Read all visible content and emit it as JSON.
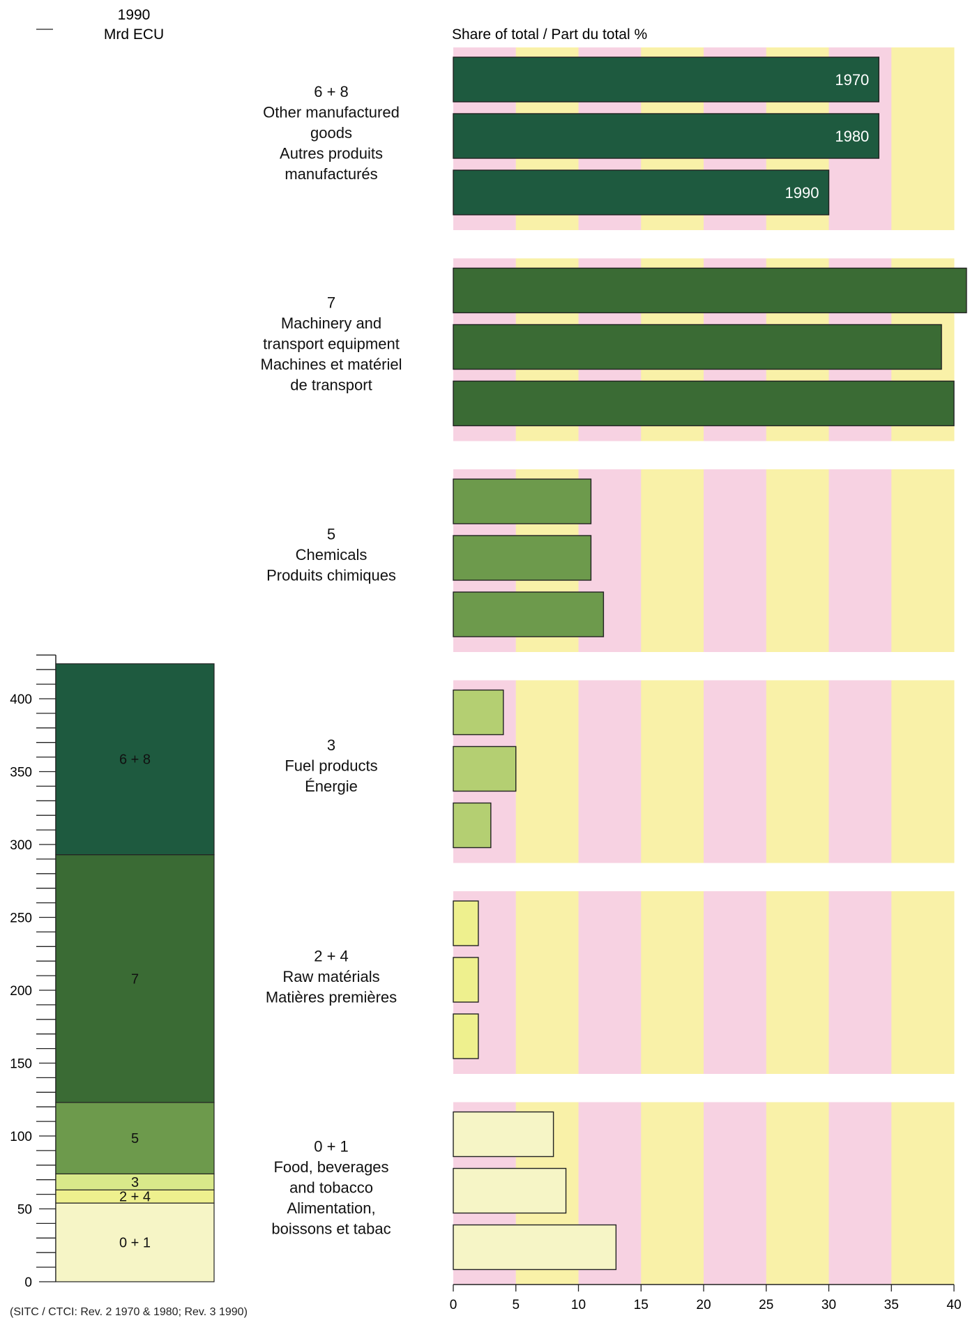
{
  "chart_data": [
    {
      "type": "bar",
      "subtype": "stacked-column",
      "title": "1990",
      "ylabel": "Mrd ECU",
      "ylim": [
        0,
        430
      ],
      "yticks": [
        0,
        50,
        100,
        150,
        200,
        250,
        300,
        350,
        400
      ],
      "ytick_labels": [
        "0",
        "50",
        "100",
        "150",
        "200",
        "250",
        "300",
        "350",
        "400"
      ],
      "segments": [
        {
          "label": "0 + 1",
          "value": 54,
          "color": "#f6f5c6"
        },
        {
          "label": "2 + 4",
          "value": 9,
          "color": "#eef08e"
        },
        {
          "label": "3",
          "value": 11,
          "color": "#d9e98a"
        },
        {
          "label": "5",
          "value": 49,
          "color": "#6d9a4c"
        },
        {
          "label": "7",
          "value": 170,
          "color": "#3a6b34"
        },
        {
          "label": "6 + 8",
          "value": 131,
          "color": "#1e5a3f"
        }
      ],
      "footnote": "(SITC / CTCI: Rev. 2 1970 & 1980; Rev. 3 1990)"
    },
    {
      "type": "bar",
      "subtype": "horizontal-grouped",
      "xlabel": "Share of total / Part du total  %",
      "xlim": [
        0,
        40
      ],
      "xticks": [
        0,
        5,
        10,
        15,
        20,
        25,
        30,
        35,
        40
      ],
      "xtick_labels": [
        "0",
        "5",
        "10",
        "15",
        "20",
        "25",
        "30",
        "35",
        "40"
      ],
      "band_colors": [
        "#f7d2e2",
        "#f9f1a8"
      ],
      "years": [
        "1970",
        "1980",
        "1990"
      ],
      "groups": [
        {
          "code": "6 + 8",
          "label_lines": [
            "6 + 8",
            "Other manufactured",
            "goods",
            "Autres produits",
            "manufacturés"
          ],
          "values": [
            34,
            34,
            30
          ],
          "color": "#1e5a3f"
        },
        {
          "code": "7",
          "label_lines": [
            "7",
            "Machinery and",
            "transport equipment",
            "Machines et matériel",
            "de transport"
          ],
          "values": [
            41,
            39,
            40
          ],
          "color": "#3a6b34"
        },
        {
          "code": "5",
          "label_lines": [
            "5",
            "Chemicals",
            "Produits chimiques"
          ],
          "values": [
            11,
            11,
            12
          ],
          "color": "#6d9a4c"
        },
        {
          "code": "3",
          "label_lines": [
            "3",
            "Fuel products",
            "Énergie"
          ],
          "values": [
            4,
            5,
            3
          ],
          "color": "#b4cf72"
        },
        {
          "code": "2 + 4",
          "label_lines": [
            "2 + 4",
            "Raw matérials",
            "Matières premières"
          ],
          "values": [
            2,
            2,
            2
          ],
          "color": "#eef08e"
        },
        {
          "code": "0 + 1",
          "label_lines": [
            "0 + 1",
            "Food, beverages",
            "and tobacco",
            "Alimentation,",
            "boissons et tabac"
          ],
          "values": [
            8,
            9,
            13
          ],
          "color": "#f6f5c6"
        }
      ]
    }
  ]
}
